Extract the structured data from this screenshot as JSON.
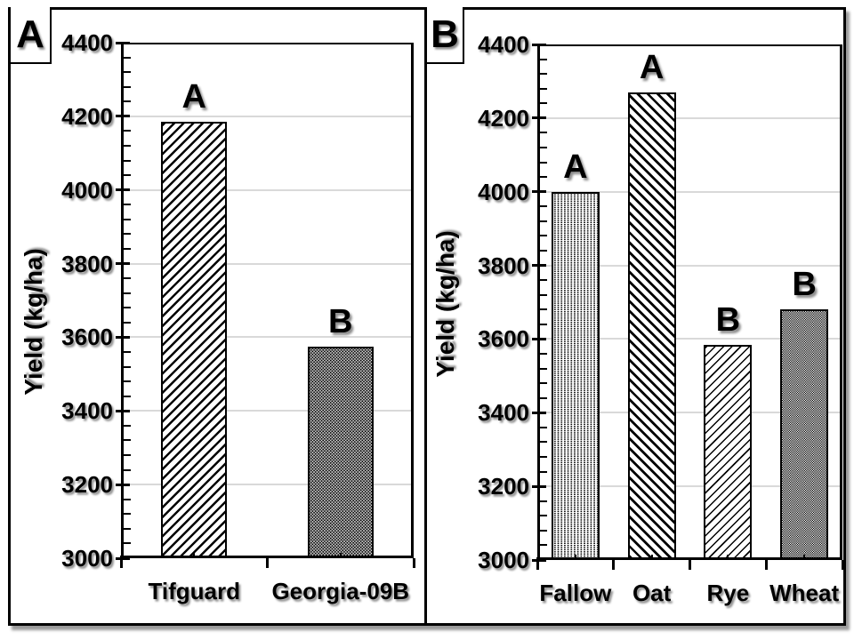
{
  "figure": {
    "panel_a_label": "A",
    "panel_b_label": "B",
    "ylabel": "Yield (kg/ha)"
  },
  "colors": {
    "axis": "#000000",
    "gridline": "#d9d9d9",
    "text": "#000000",
    "bar_fill": "#ffffff",
    "background": "#ffffff"
  },
  "chart_data": [
    {
      "type": "bar",
      "panel": "A",
      "ylabel": "Yield (kg/ha)",
      "ylim": [
        3000,
        4400
      ],
      "ytick_step": 200,
      "yminor_step": 40,
      "ytick_labels": [
        "4400",
        "4200",
        "4000",
        "3800",
        "3600",
        "3400",
        "3200",
        "3000"
      ],
      "grid": true,
      "legend": "none",
      "categories": [
        "Tifguard",
        "Georgia-09B"
      ],
      "values": [
        4185,
        3575
      ],
      "bar_labels": [
        "A",
        "B"
      ],
      "bar_patterns": [
        "hatch-fwd-bold",
        "dot-lattice"
      ],
      "bar_width_frac": 0.45
    },
    {
      "type": "bar",
      "panel": "B",
      "ylabel": "Yield (kg/ha)",
      "ylim": [
        3000,
        4400
      ],
      "ytick_step": 200,
      "yminor_step": 40,
      "ytick_labels": [
        "4400",
        "4200",
        "4000",
        "3800",
        "3600",
        "3400",
        "3200",
        "3000"
      ],
      "grid": true,
      "legend": "none",
      "categories": [
        "Fallow",
        "Oat",
        "Rye",
        "Wheat"
      ],
      "values": [
        4000,
        4270,
        3585,
        3680
      ],
      "bar_labels": [
        "A",
        "A",
        "B",
        "B"
      ],
      "bar_patterns": [
        "dots-grid",
        "hatch-back-bold",
        "hatch-fwd-fine",
        "checker-fine"
      ],
      "bar_width_frac": 0.63
    }
  ]
}
